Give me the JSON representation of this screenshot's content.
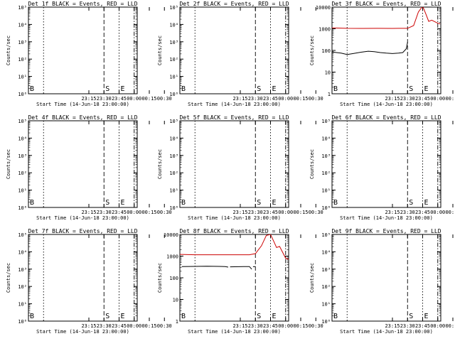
{
  "figure": {
    "x_ticks": [
      "23:15",
      "23:30",
      "23:45",
      "00:00",
      "00:15",
      "00:30"
    ],
    "xlabel": "Start Time (14-Jun-18 23:00:00)",
    "ylabel": "Counts/sec",
    "marker_labels": [
      "B",
      "S",
      "E"
    ]
  },
  "colors": {
    "events": "#000000",
    "lld": "#cc0000"
  },
  "chart_data": [
    {
      "type": "line",
      "title": "Det 1f BLACK = Events, RED = LLD",
      "yscale": "log",
      "ylim": [
        1,
        100000
      ],
      "ytick_labels": [
        "10⁰",
        "10¹",
        "10²",
        "10³",
        "10⁴",
        "10⁵"
      ],
      "series": []
    },
    {
      "type": "line",
      "title": "Det 2f BLACK = Events, RED = LLD",
      "yscale": "log",
      "ylim": [
        1,
        100000
      ],
      "ytick_labels": [
        "10⁰",
        "10¹",
        "10²",
        "10³",
        "10⁴",
        "10⁵"
      ],
      "series": []
    },
    {
      "type": "line",
      "title": "Det 3f BLACK = Events, RED = LLD",
      "yscale": "log",
      "ylim": [
        1,
        10000
      ],
      "ytick_labels": [
        "1",
        "10",
        "100",
        "1000",
        "10000"
      ],
      "series": [
        {
          "name": "LLD",
          "color": "red",
          "segments": [
            [
              [
                -0.75,
                1100
              ],
              [
                -0.5,
                1050
              ],
              [
                -0.25,
                1040
              ],
              [
                0,
                1050
              ],
              [
                0.25,
                1040
              ],
              [
                0.35,
                1050
              ],
              [
                0.5,
                1050
              ],
              [
                0.6,
                1400
              ],
              [
                0.68,
                6000
              ],
              [
                0.75,
                11000
              ],
              [
                0.8,
                5000
              ],
              [
                0.85,
                2200
              ],
              [
                0.9,
                2500
              ],
              [
                1.0,
                1800
              ],
              [
                1.04,
                1700
              ]
            ]
          ]
        },
        {
          "name": "Events",
          "color": "black",
          "segments": [
            [
              [
                -0.75,
                85
              ],
              [
                -0.6,
                75
              ],
              [
                -0.5,
                65
              ],
              [
                -0.4,
                72
              ],
              [
                -0.25,
                85
              ],
              [
                -0.15,
                92
              ],
              [
                -0.05,
                88
              ],
              [
                0.05,
                80
              ],
              [
                0.15,
                75
              ],
              [
                0.25,
                72
              ],
              [
                0.35,
                75
              ],
              [
                0.42,
                80
              ],
              [
                0.48,
                120
              ],
              [
                0.5,
                240
              ]
            ]
          ]
        }
      ]
    },
    {
      "type": "line",
      "title": "Det 4f BLACK = Events, RED = LLD",
      "yscale": "log",
      "ylim": [
        1,
        100000
      ],
      "ytick_labels": [
        "10⁰",
        "10¹",
        "10²",
        "10³",
        "10⁴",
        "10⁵"
      ],
      "series": []
    },
    {
      "type": "line",
      "title": "Det 5f BLACK = Events, RED = LLD",
      "yscale": "log",
      "ylim": [
        1,
        100000
      ],
      "ytick_labels": [
        "10⁰",
        "10¹",
        "10²",
        "10³",
        "10⁴",
        "10⁵"
      ],
      "series": []
    },
    {
      "type": "line",
      "title": "Det 6f BLACK = Events, RED = LLD",
      "yscale": "log",
      "ylim": [
        1,
        100000
      ],
      "ytick_labels": [
        "10⁰",
        "10¹",
        "10²",
        "10³",
        "10⁴",
        "10⁵"
      ],
      "series": []
    },
    {
      "type": "line",
      "title": "Det 7f BLACK = Events, RED = LLD",
      "yscale": "log",
      "ylim": [
        1,
        100000
      ],
      "ytick_labels": [
        "10⁰",
        "10¹",
        "10²",
        "10³",
        "10⁴",
        "10⁵"
      ],
      "series": []
    },
    {
      "type": "line",
      "title": "Det 8f BLACK = Events, RED = LLD",
      "yscale": "log",
      "ylim": [
        1,
        10000
      ],
      "ytick_labels": [
        "1",
        "10",
        "100",
        "1000",
        "10000"
      ],
      "series": [
        {
          "name": "LLD",
          "color": "red",
          "segments": [
            [
              [
                -0.75,
                1200
              ],
              [
                -0.5,
                1150
              ],
              [
                -0.25,
                1150
              ],
              [
                0,
                1150
              ],
              [
                0.25,
                1150
              ],
              [
                0.4,
                1150
              ],
              [
                0.5,
                1300
              ],
              [
                0.6,
                3000
              ],
              [
                0.68,
                9000
              ],
              [
                0.75,
                10000
              ],
              [
                0.8,
                5000
              ],
              [
                0.85,
                2500
              ],
              [
                0.9,
                2800
              ],
              [
                1.0,
                800
              ],
              [
                1.05,
                700
              ]
            ]
          ]
        },
        {
          "name": "Events",
          "color": "black",
          "segments": [
            [
              [
                -0.72,
                330
              ],
              [
                -0.3,
                340
              ],
              [
                -0.1,
                335
              ],
              [
                0.0,
                330
              ],
              [
                0.05,
                310
              ]
            ],
            [
              [
                0.08,
                320
              ],
              [
                0.3,
                330
              ],
              [
                0.4,
                330
              ],
              [
                0.44,
                250
              ]
            ],
            [
              [
                0.46,
                325
              ],
              [
                0.5,
                330
              ]
            ]
          ]
        }
      ]
    },
    {
      "type": "line",
      "title": "Det 9f BLACK = Events, RED = LLD",
      "yscale": "log",
      "ylim": [
        1,
        100000
      ],
      "ytick_labels": [
        "10⁰",
        "10¹",
        "10²",
        "10³",
        "10⁴",
        "10⁵"
      ],
      "series": []
    }
  ]
}
